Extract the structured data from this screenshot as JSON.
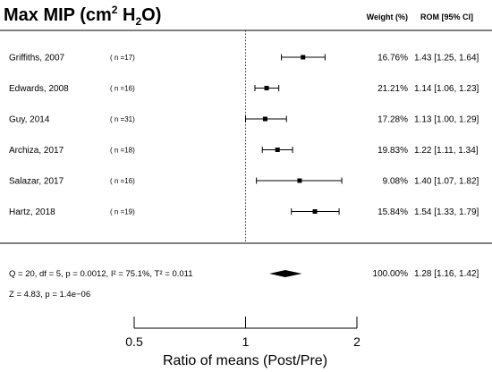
{
  "chart_data": {
    "type": "forest",
    "title": "Max MIP (cm",
    "title_sup": "2",
    "title_mid": " H",
    "title_sub": "2",
    "title_end": "O)",
    "col_weight": "Weight (%)",
    "col_rom": "ROM [95% CI]",
    "studies": [
      {
        "study": "Griffiths, 2007",
        "n": "( n =17)",
        "weight": "16.76%",
        "ci_text": "1.43 [1.25, 1.64]",
        "est": 1.43,
        "lo": 1.25,
        "hi": 1.64
      },
      {
        "study": "Edwards, 2008",
        "n": "( n =16)",
        "weight": "21.21%",
        "ci_text": "1.14 [1.06, 1.23]",
        "est": 1.14,
        "lo": 1.06,
        "hi": 1.23
      },
      {
        "study": "Guy, 2014",
        "n": "( n =31)",
        "weight": "17.28%",
        "ci_text": "1.13 [1.00, 1.29]",
        "est": 1.13,
        "lo": 1.0,
        "hi": 1.29
      },
      {
        "study": "Archiza, 2017",
        "n": "( n =18)",
        "weight": "19.83%",
        "ci_text": "1.22 [1.11, 1.34]",
        "est": 1.22,
        "lo": 1.11,
        "hi": 1.34
      },
      {
        "study": "Salazar, 2017",
        "n": "( n =16)",
        "weight": "9.08%",
        "ci_text": "1.40 [1.07, 1.82]",
        "est": 1.4,
        "lo": 1.07,
        "hi": 1.82
      },
      {
        "study": "Hartz, 2018",
        "n": "( n =19)",
        "weight": "15.84%",
        "ci_text": "1.54 [1.33, 1.79]",
        "est": 1.54,
        "lo": 1.33,
        "hi": 1.79
      }
    ],
    "summary": {
      "heterogeneity": "Q = 20, df = 5, p = 0.0012, I² = 75.1%, Τ² = 0.011",
      "effect": "Z = 4.83, p = 1.4e−06",
      "weight": "100.00%",
      "ci_text": "1.28 [1.16, 1.42]",
      "est": 1.28,
      "lo": 1.16,
      "hi": 1.42
    },
    "xscale": "log",
    "xlim": [
      0.5,
      2
    ],
    "xticks": [
      0.5,
      1,
      2
    ],
    "xtick_labels": [
      "0.5",
      "1",
      "2"
    ],
    "reference_line": 1,
    "xlabel": "Ratio of means (Post/Pre)"
  }
}
